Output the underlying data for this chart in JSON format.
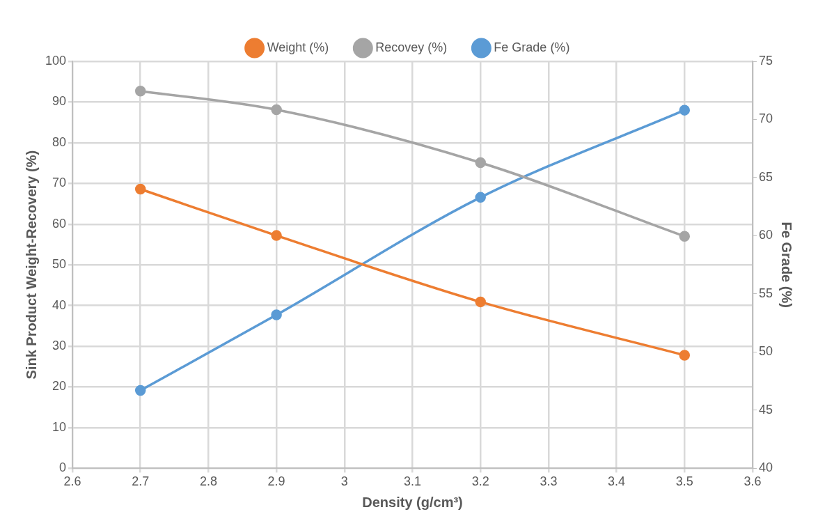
{
  "chart_data": {
    "type": "line",
    "xlabel": "Density (g/cm³)",
    "ylabel": "Sink Product Weight-Recovery (%)",
    "y2label": "Fe Grade (%)",
    "x": [
      2.7,
      2.9,
      3.2,
      3.5
    ],
    "series": [
      {
        "name": "Weight (%)",
        "color": "#ed7d31",
        "values": [
          68.6,
          57.2,
          40.9,
          27.8
        ]
      },
      {
        "name": "Recovey (%)",
        "color": "#a5a5a5",
        "values": [
          92.7,
          88.1,
          75.1,
          57.0
        ]
      },
      {
        "name": "Fe Grade (%)",
        "color": "#5b9bd5",
        "values": [
          46.7,
          53.2,
          63.3,
          70.8
        ],
        "axis": "y2"
      }
    ],
    "xlim": [
      2.6,
      3.6
    ],
    "xticks": [
      2.6,
      2.7,
      2.8,
      2.9,
      3,
      3.1,
      3.2,
      3.3,
      3.4,
      3.5,
      3.6
    ],
    "ylim": [
      0,
      100
    ],
    "yticks": [
      0,
      10,
      20,
      30,
      40,
      50,
      60,
      70,
      80,
      90,
      100
    ],
    "y2lim": [
      40,
      75
    ],
    "y2ticks": [
      40,
      45,
      50,
      55,
      60,
      65,
      70,
      75
    ],
    "grid": true,
    "legend": "top",
    "marker": "circle",
    "line_style": "solid"
  }
}
